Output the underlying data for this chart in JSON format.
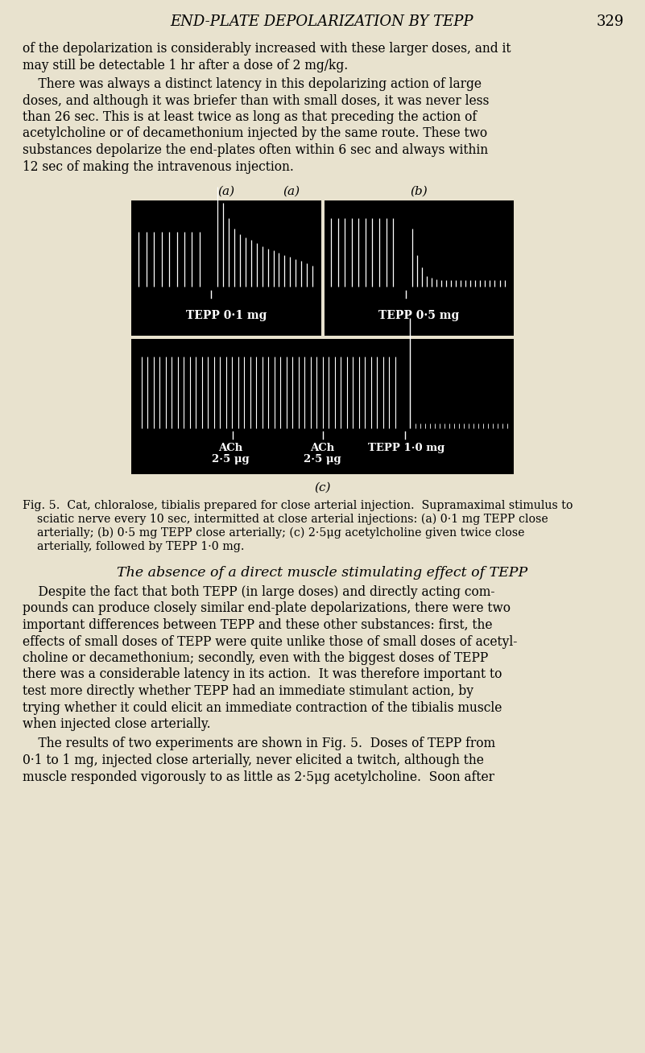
{
  "bg_color": "#e8e2ce",
  "page_width": 8.01,
  "page_height": 13.08,
  "title": "END-PLATE DEPOLARIZATION BY TEPP",
  "page_number": "329",
  "title_fontsize": 13,
  "body_fontsize": 11.2,
  "fig_caption_fontsize": 10.2,
  "section_title": "The absence of a direct muscle stimulating effect of TEPP",
  "para1": "of the depolarization is considerably increased with these larger doses, and it\nmay still be detectable 1 hr after a dose of 2 mg/kg.",
  "para2_indent": "    There was always a distinct latency in this depolarizing action of large",
  "para2_rest": [
    "doses, and although it was briefer than with small doses, it was never less",
    "than 26 sec. This is at least twice as long as that preceding the action of",
    "acetylcholine or of decamethonium injected by the same route. These two",
    "substances depolarize the end-plates often within 6 sec and always within",
    "12 sec of making the intravenous injection."
  ],
  "fig_label_a": "(a)",
  "fig_label_b": "(b)",
  "fig_label_c": "(c)",
  "panel_a_label": "TEPP 0·1 mg",
  "panel_b_label": "TEPP 0·5 mg",
  "panel_c_label1": "ACh",
  "panel_c_label1b": "2·5 μg",
  "panel_c_label2": "ACh",
  "panel_c_label2b": "2·5 μg",
  "panel_c_label3": "TEPP 1·0 mg",
  "fig_caption_lines": [
    "Fig. 5.  Cat, chloralose, tibialis prepared for close arterial injection.  Supramaximal stimulus to",
    "    sciatic nerve every 10 sec, intermitted at close arterial injections: (a) 0·1 mg TEPP close",
    "    arterially; (b) 0·5 mg TEPP close arterially; (c) 2·5μg acetylcholine given twice close",
    "    arterially, followed by TEPP 1·0 mg."
  ],
  "section_para1_lines": [
    "    Despite the fact that both TEPP (in large doses) and directly acting com-",
    "pounds can produce closely similar end-plate depolarizations, there were two",
    "important differences between TEPP and these other substances: first, the",
    "effects of small doses of TEPP were quite unlike those of small doses of acetyl-",
    "choline or decamethonium; secondly, even with the biggest doses of TEPP",
    "there was a considerable latency in its action.  It was therefore important to",
    "test more directly whether TEPP had an immediate stimulant action, by",
    "trying whether it could elicit an immediate contraction of the tibialis muscle",
    "when injected close arterially."
  ],
  "section_para2_lines": [
    "    The results of two experiments are shown in Fig. 5.  Doses of TEPP from",
    "0·1 to 1 mg, injected close arterially, never elicited a twitch, although the",
    "muscle responded vigorously to as little as 2·5μg acetylcholine.  Soon after"
  ]
}
